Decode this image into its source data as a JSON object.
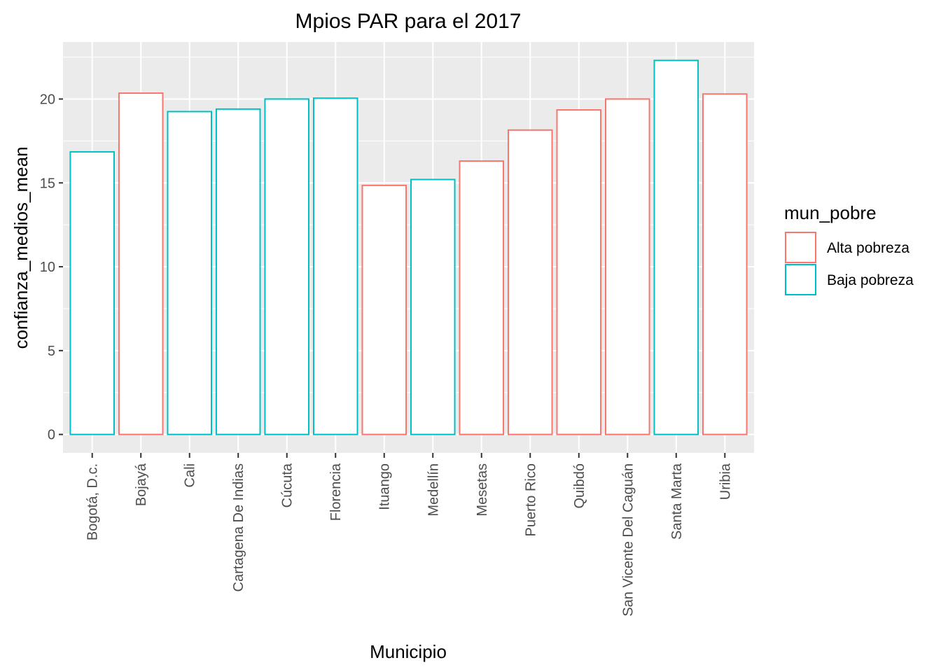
{
  "chart_data": {
    "type": "bar",
    "title": "Mpios PAR para el 2017",
    "xlabel": "Municipio",
    "ylabel": "confianza_medios_mean",
    "ylim": [
      -1.1,
      23.4
    ],
    "yticks": [
      0,
      5,
      10,
      15,
      20
    ],
    "grid": true,
    "legend_placement": "right",
    "legend": {
      "title": "mun_pobre",
      "entries": [
        {
          "name": "Alta pobreza",
          "color": "#F8766D"
        },
        {
          "name": "Baja pobreza",
          "color": "#00BFC4"
        }
      ]
    },
    "categories": [
      "Bogotá, D.c.",
      "Bojayá",
      "Cali",
      "Cartagena De Indias",
      "Cúcuta",
      "Florencia",
      "Ituango",
      "Medellín",
      "Mesetas",
      "Puerto Rico",
      "Quibdó",
      "San Vicente Del Caguán",
      "Santa Marta",
      "Uribia"
    ],
    "values": [
      16.85,
      20.35,
      19.25,
      19.4,
      20.0,
      20.05,
      14.85,
      15.2,
      16.3,
      18.15,
      19.35,
      20.0,
      22.3,
      20.3
    ],
    "groups": [
      "Baja pobreza",
      "Alta pobreza",
      "Baja pobreza",
      "Baja pobreza",
      "Baja pobreza",
      "Baja pobreza",
      "Alta pobreza",
      "Baja pobreza",
      "Alta pobreza",
      "Alta pobreza",
      "Alta pobreza",
      "Alta pobreza",
      "Baja pobreza",
      "Alta pobreza"
    ],
    "colors": {
      "panel_background": "#EBEBEB",
      "grid": "#FFFFFF",
      "bar_fill": "#FFFFFF"
    }
  }
}
